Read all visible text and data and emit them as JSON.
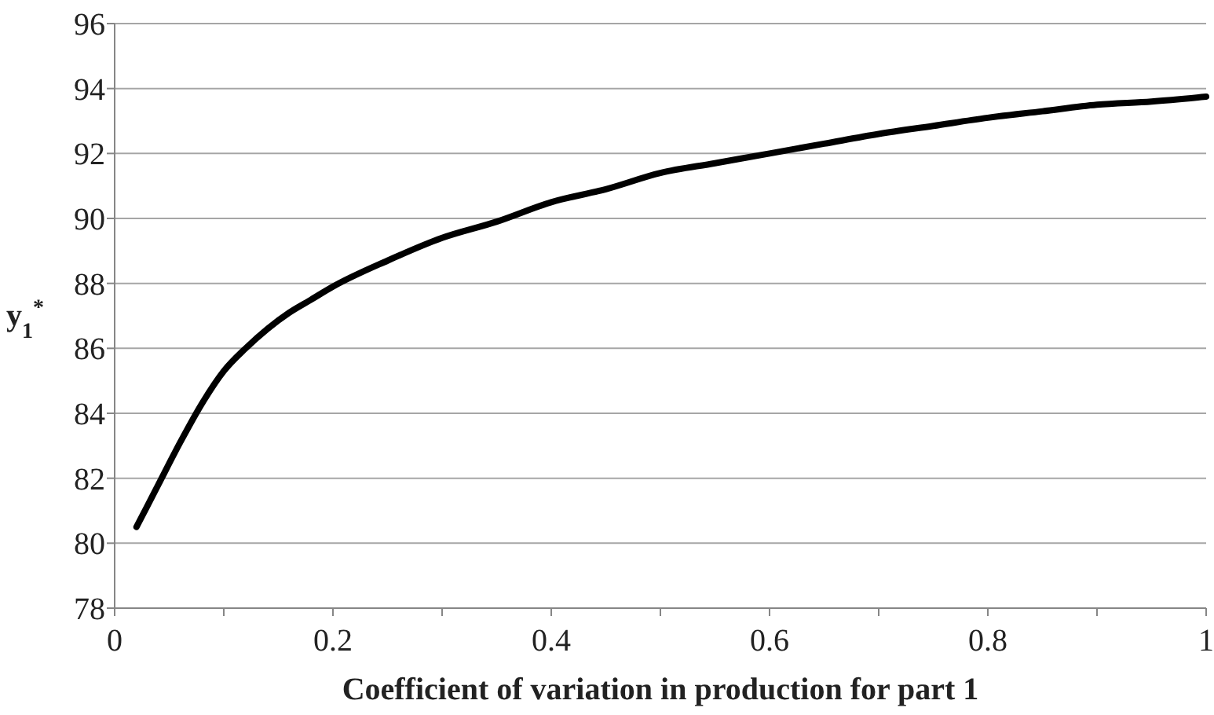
{
  "chart_data": {
    "type": "line",
    "xlabel": "Coefficient of variation in production for part 1",
    "ylabel": "y$_{1}$$^{*}$",
    "x": [
      0.02,
      0.04,
      0.06,
      0.08,
      0.1,
      0.12,
      0.14,
      0.16,
      0.18,
      0.2,
      0.25,
      0.3,
      0.35,
      0.4,
      0.45,
      0.5,
      0.55,
      0.6,
      0.65,
      0.7,
      0.75,
      0.8,
      0.85,
      0.9,
      0.95,
      1.0
    ],
    "series": [
      {
        "color": "#000000",
        "values": [
          80.5,
          81.8,
          83.1,
          84.3,
          85.3,
          86.0,
          86.6,
          87.1,
          87.5,
          87.9,
          88.7,
          89.4,
          89.9,
          90.5,
          90.9,
          91.4,
          91.7,
          92.0,
          92.3,
          92.6,
          92.85,
          93.1,
          93.3,
          93.5,
          93.6,
          93.75
        ]
      }
    ],
    "xlim": [
      0,
      1
    ],
    "ylim": [
      78,
      96
    ],
    "xticks": [
      0,
      {
        "value": 0.1,
        "label": null
      },
      {
        "value": 0.2,
        "label": "0.2"
      },
      {
        "value": 0.3,
        "label": null
      },
      {
        "value": 0.4,
        "label": "0.4"
      },
      {
        "value": 0.5,
        "label": null
      },
      {
        "value": 0.6,
        "label": "0.6"
      },
      {
        "value": 0.7,
        "label": null
      },
      {
        "value": 0.8,
        "label": "0.8"
      },
      {
        "value": 0.9,
        "label": null
      },
      1
    ],
    "yticks": [
      78,
      80,
      82,
      84,
      86,
      88,
      90,
      92,
      94,
      96
    ],
    "grid": "y",
    "marker": "none",
    "line_style": "solid"
  }
}
